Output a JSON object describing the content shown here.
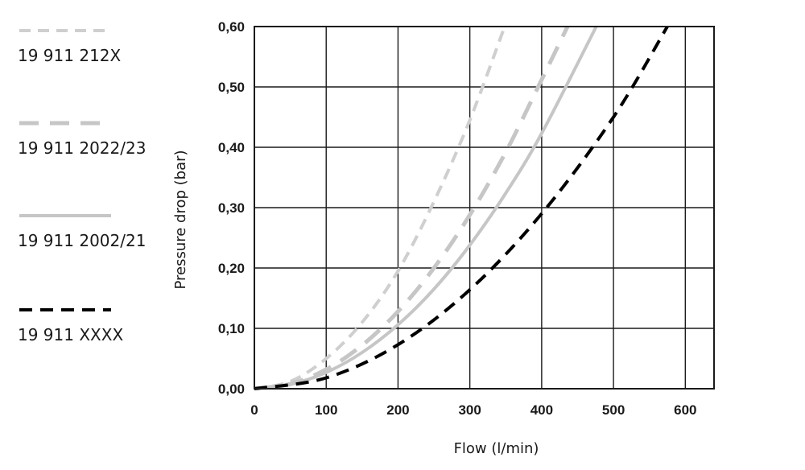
{
  "chart_data": {
    "type": "line",
    "title": "",
    "xlabel": "Flow (l/min)",
    "ylabel": "Pressure drop (bar)",
    "xlim": [
      0,
      640
    ],
    "ylim": [
      0,
      0.6
    ],
    "x_ticks": [
      0,
      100,
      200,
      300,
      400,
      500,
      600
    ],
    "y_ticks": [
      0,
      0.1,
      0.2,
      0.3,
      0.4,
      0.5,
      0.6
    ],
    "x_tick_labels": [
      "0",
      "100",
      "200",
      "300",
      "400",
      "500",
      "600"
    ],
    "y_tick_labels": [
      "0,00",
      "0,10",
      "0,20",
      "0,30",
      "0,40",
      "0,50",
      "0,60"
    ],
    "grid": true,
    "legend_position": "left",
    "series": [
      {
        "name": "19 911 212X",
        "color": "#cfcfcf",
        "dash": "short-dash",
        "x": [
          0,
          50,
          100,
          150,
          200,
          250,
          300,
          350
        ],
        "y": [
          0,
          0.012,
          0.05,
          0.11,
          0.195,
          0.31,
          0.445,
          0.605
        ]
      },
      {
        "name": "19 911 2022/23",
        "color": "#c6c6c6",
        "dash": "long-dash",
        "x": [
          0,
          50,
          100,
          150,
          200,
          250,
          300,
          350,
          400,
          436
        ],
        "y": [
          0,
          0.008,
          0.032,
          0.072,
          0.128,
          0.2,
          0.288,
          0.392,
          0.512,
          0.6
        ]
      },
      {
        "name": "19 911 2002/21",
        "color": "#c6c6c6",
        "dash": "solid",
        "x": [
          0,
          50,
          100,
          150,
          200,
          250,
          300,
          350,
          400,
          476
        ],
        "y": [
          0,
          0.007,
          0.027,
          0.06,
          0.106,
          0.165,
          0.238,
          0.324,
          0.423,
          0.6
        ]
      },
      {
        "name": "19 911 XXXX",
        "color": "#000000",
        "dash": "dash",
        "x": [
          0,
          100,
          200,
          300,
          400,
          500,
          575
        ],
        "y": [
          0,
          0.018,
          0.073,
          0.164,
          0.29,
          0.45,
          0.6
        ]
      }
    ]
  }
}
